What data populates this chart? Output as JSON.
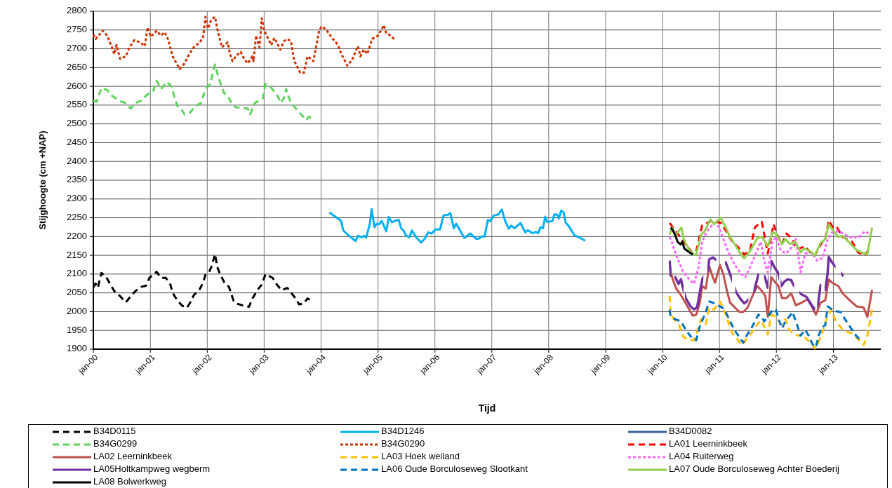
{
  "chart_data": {
    "type": "line",
    "xlabel": "Tijd",
    "ylabel": "Stijghoogte (cm +NAP)",
    "xlim": [
      "2000-01-01",
      "2013-11-01"
    ],
    "xticks": [
      {
        "value": "2000-01-01",
        "label": "jan-00"
      },
      {
        "value": "2001-01-01",
        "label": "jan-01"
      },
      {
        "value": "2002-01-01",
        "label": "jan-02"
      },
      {
        "value": "2003-01-01",
        "label": "jan-03"
      },
      {
        "value": "2004-01-01",
        "label": "jan-04"
      },
      {
        "value": "2005-01-01",
        "label": "jan-05"
      },
      {
        "value": "2006-01-01",
        "label": "jan-06"
      },
      {
        "value": "2007-01-01",
        "label": "jan-07"
      },
      {
        "value": "2008-01-01",
        "label": "jan-08"
      },
      {
        "value": "2009-01-01",
        "label": "jan-09"
      },
      {
        "value": "2010-01-01",
        "label": "jan-10"
      },
      {
        "value": "2011-01-01",
        "label": "jan-11"
      },
      {
        "value": "2012-01-01",
        "label": "jan-12"
      },
      {
        "value": "2013-01-01",
        "label": "jan-13"
      }
    ],
    "ylim": [
      1900,
      2800
    ],
    "yticks": [
      1900,
      1950,
      2000,
      2050,
      2100,
      2150,
      2200,
      2250,
      2300,
      2350,
      2400,
      2450,
      2500,
      2550,
      2600,
      2650,
      2700,
      2750,
      2800
    ],
    "grid": true,
    "legend": "bottom",
    "series": [
      {
        "name": "B34D0115",
        "color": "#000000",
        "line_style": "dashed",
        "x": [
          "2000-01-01",
          "2000-01-15",
          "2000-01-30",
          "2000-02-07",
          "2000-02-22",
          "2000-03-22",
          "2000-04-21",
          "2000-05-14",
          "2000-06-21",
          "2000-07-28",
          "2000-08-28",
          "2000-09-28",
          "2000-11-04",
          "2000-12-04",
          "2000-12-26",
          "2001-02-10",
          "2001-03-10",
          "2001-04-10",
          "2001-05-10",
          "2001-05-24",
          "2001-06-24",
          "2001-07-24",
          "2001-08-23",
          "2001-09-15",
          "2001-10-07",
          "2001-11-14",
          "2001-12-06",
          "2001-12-21",
          "2002-01-14",
          "2002-01-29",
          "2002-02-20",
          "2002-03-06",
          "2002-03-21",
          "2002-04-20",
          "2002-05-20",
          "2002-06-19",
          "2002-07-04",
          "2002-08-19",
          "2002-09-26",
          "2002-10-18",
          "2002-11-18",
          "2002-12-17",
          "2003-01-10",
          "2003-02-24",
          "2003-03-24",
          "2003-04-23",
          "2003-05-30",
          "2003-06-30",
          "2003-07-22",
          "2003-08-14",
          "2003-09-13",
          "2003-10-06",
          "2003-10-21"
        ],
        "values": [
          2065,
          2075,
          2063,
          2078,
          2103,
          2093,
          2071,
          2055,
          2041,
          2025,
          2041,
          2055,
          2066,
          2069,
          2090,
          2106,
          2090,
          2090,
          2071,
          2050,
          2029,
          2016,
          2010,
          2025,
          2044,
          2060,
          2078,
          2099,
          2106,
          2121,
          2153,
          2119,
          2103,
          2078,
          2066,
          2029,
          2022,
          2016,
          2013,
          2035,
          2057,
          2072,
          2100,
          2090,
          2072,
          2057,
          2063,
          2047,
          2035,
          2019,
          2022,
          2035,
          2032
        ]
      },
      {
        "name": "B34D1246",
        "color": "#00b0f0",
        "line_style": "solid",
        "x": [
          "2004-02-24",
          "2004-04-11",
          "2004-05-08",
          "2004-05-23",
          "2004-06-26",
          "2004-08-10",
          "2004-08-25",
          "2004-09-17",
          "2004-10-02",
          "2004-10-17",
          "2004-11-09",
          "2004-11-21",
          "2004-12-09",
          "2004-12-24",
          "2005-01-09",
          "2005-01-24",
          "2005-02-23",
          "2005-03-11",
          "2005-03-30",
          "2005-04-22",
          "2005-05-14",
          "2005-05-29",
          "2005-06-14",
          "2005-06-29",
          "2005-07-21",
          "2005-08-06",
          "2005-09-05",
          "2005-10-05",
          "2005-10-27",
          "2005-11-19",
          "2005-12-11",
          "2006-01-04",
          "2006-02-03",
          "2006-02-25",
          "2006-03-25",
          "2006-04-10",
          "2006-05-02",
          "2006-05-17",
          "2006-07-09",
          "2006-08-16",
          "2006-09-23",
          "2006-10-08",
          "2006-10-30",
          "2006-11-15",
          "2006-12-07",
          "2006-12-22",
          "2007-01-14",
          "2007-02-13",
          "2007-03-06",
          "2007-03-28",
          "2007-04-20",
          "2007-05-05",
          "2007-05-27",
          "2007-07-04",
          "2007-08-04",
          "2007-08-19",
          "2007-09-18",
          "2007-10-11",
          "2007-10-26",
          "2007-11-10",
          "2007-11-25",
          "2007-12-10",
          "2007-12-22",
          "2008-01-25",
          "2008-02-06",
          "2008-02-24",
          "2008-03-06",
          "2008-03-21",
          "2008-04-06",
          "2008-04-20",
          "2008-05-08",
          "2008-06-15",
          "2008-07-22",
          "2008-08-22"
        ],
        "values": [
          2264,
          2250,
          2242,
          2216,
          2203,
          2188,
          2202,
          2198,
          2202,
          2197,
          2234,
          2273,
          2225,
          2234,
          2233,
          2242,
          2214,
          2252,
          2238,
          2242,
          2244,
          2222,
          2216,
          2203,
          2198,
          2216,
          2197,
          2184,
          2194,
          2211,
          2208,
          2219,
          2219,
          2256,
          2258,
          2262,
          2222,
          2234,
          2196,
          2208,
          2194,
          2194,
          2200,
          2200,
          2244,
          2241,
          2256,
          2259,
          2272,
          2241,
          2221,
          2229,
          2222,
          2236,
          2211,
          2217,
          2209,
          2212,
          2209,
          2225,
          2222,
          2253,
          2239,
          2241,
          2259,
          2258,
          2248,
          2269,
          2264,
          2236,
          2228,
          2203,
          2196,
          2189
        ]
      },
      {
        "name": "B34D0082",
        "color": "#366092",
        "line_style": "solid"
      },
      {
        "name": "B34G0299",
        "color": "#5ed35e",
        "line_style": "dashed",
        "x": [
          "2000-01-01",
          "2000-01-23",
          "2000-02-22",
          "2000-03-30",
          "2000-04-29",
          "2000-06-14",
          "2000-07-21",
          "2000-08-28",
          "2000-09-28",
          "2000-11-04",
          "2000-12-12",
          "2001-01-19",
          "2001-02-10",
          "2001-03-10",
          "2001-04-17",
          "2001-05-17",
          "2001-06-02",
          "2001-06-24",
          "2001-07-16",
          "2001-08-08",
          "2001-09-15",
          "2001-10-15",
          "2001-11-22",
          "2001-12-21",
          "2002-01-21",
          "2002-02-13",
          "2002-02-20",
          "2002-03-06",
          "2002-03-28",
          "2002-04-20",
          "2002-05-12",
          "2002-06-12",
          "2002-07-04",
          "2002-09-18",
          "2002-10-03",
          "2002-11-03",
          "2002-12-02",
          "2002-12-24",
          "2003-01-10",
          "2003-02-16",
          "2003-04-01",
          "2003-04-15",
          "2003-05-08",
          "2003-05-23",
          "2003-05-30",
          "2003-06-22",
          "2003-08-07",
          "2003-09-29",
          "2003-10-14",
          "2003-10-29"
        ],
        "values": [
          2562,
          2559,
          2596,
          2590,
          2575,
          2562,
          2556,
          2541,
          2556,
          2562,
          2578,
          2587,
          2615,
          2593,
          2612,
          2599,
          2575,
          2547,
          2541,
          2525,
          2531,
          2547,
          2556,
          2593,
          2606,
          2649,
          2658,
          2636,
          2606,
          2581,
          2575,
          2550,
          2544,
          2541,
          2525,
          2556,
          2562,
          2568,
          2606,
          2596,
          2572,
          2556,
          2568,
          2593,
          2581,
          2556,
          2534,
          2510,
          2519,
          2516
        ]
      },
      {
        "name": "B34G0290",
        "color": "#cc3300",
        "line_style": "dotted",
        "x": [
          "2000-01-01",
          "2000-01-16",
          "2000-03-01",
          "2000-03-30",
          "2000-04-29",
          "2000-05-14",
          "2000-05-29",
          "2000-06-21",
          "2000-07-28",
          "2000-08-20",
          "2000-09-20",
          "2000-10-27",
          "2000-11-26",
          "2000-12-14",
          "2001-01-04",
          "2001-02-10",
          "2001-03-10",
          "2001-04-02",
          "2001-04-24",
          "2001-05-24",
          "2001-07-08",
          "2001-08-08",
          "2001-09-08",
          "2001-10-07",
          "2001-11-14",
          "2001-12-06",
          "2001-12-21",
          "2002-01-06",
          "2002-01-21",
          "2002-02-06",
          "2002-02-20",
          "2002-03-06",
          "2002-04-05",
          "2002-05-12",
          "2002-05-27",
          "2002-06-12",
          "2002-07-04",
          "2002-08-03",
          "2002-08-26",
          "2002-09-18",
          "2002-10-18",
          "2002-10-25",
          "2002-11-10",
          "2002-12-02",
          "2002-12-17",
          "2003-01-02",
          "2003-01-24",
          "2003-02-16",
          "2003-03-08",
          "2003-04-15",
          "2003-05-08",
          "2003-05-30",
          "2003-06-22",
          "2003-07-14",
          "2003-08-21",
          "2003-09-13",
          "2003-10-06",
          "2003-11-13",
          "2003-12-20",
          "2004-01-05",
          "2004-02-04",
          "2004-03-11",
          "2004-04-19",
          "2004-05-11",
          "2004-06-18",
          "2004-07-18",
          "2004-08-25",
          "2004-09-10",
          "2004-10-02",
          "2004-10-24",
          "2004-11-24",
          "2005-01-01",
          "2005-02-08",
          "2005-02-22",
          "2005-03-22",
          "2005-04-14"
        ],
        "values": [
          2738,
          2726,
          2748,
          2735,
          2704,
          2686,
          2710,
          2673,
          2680,
          2704,
          2723,
          2717,
          2707,
          2757,
          2732,
          2748,
          2735,
          2744,
          2726,
          2680,
          2646,
          2661,
          2686,
          2704,
          2717,
          2732,
          2785,
          2754,
          2772,
          2781,
          2785,
          2754,
          2704,
          2717,
          2686,
          2667,
          2680,
          2692,
          2673,
          2661,
          2680,
          2667,
          2735,
          2704,
          2781,
          2748,
          2729,
          2710,
          2729,
          2698,
          2720,
          2726,
          2720,
          2667,
          2636,
          2636,
          2680,
          2667,
          2748,
          2760,
          2751,
          2729,
          2710,
          2686,
          2655,
          2670,
          2707,
          2680,
          2698,
          2686,
          2726,
          2735,
          2763,
          2742,
          2735,
          2726
        ]
      },
      {
        "name": "LA01 Leerninkbeek",
        "color": "#ff0000",
        "line_style": "dashed",
        "x": [
          "2010-02-15",
          "2010-07-13",
          "2010-08-05",
          "2010-09-12",
          "2010-10-12",
          "2010-11-19",
          "2010-12-12",
          "2011-01-11",
          "2011-02-18",
          "2011-03-25",
          "2011-05-02",
          "2011-06-09",
          "2011-07-16",
          "2011-08-16",
          "2011-09-15",
          "2011-09-30",
          "2011-11-07",
          "2011-11-29",
          "2011-12-14",
          "2012-01-06",
          "2012-02-06",
          "2012-03-06",
          "2012-04-13",
          "2012-05-05",
          "2012-05-27",
          "2012-07-04",
          "2012-08-04",
          "2012-09-04",
          "2012-10-18",
          "2012-11-10",
          "2012-12-02",
          "2013-01-02",
          "2013-01-24",
          "2013-03-01",
          "2013-05-01",
          "2013-06-08",
          "2013-07-22",
          "2013-08-14"
        ],
        "values": [
          2236,
          2155,
          2161,
          2230,
          2236,
          2243,
          2239,
          2236,
          2211,
          2186,
          2171,
          2152,
          2164,
          2224,
          2236,
          2239,
          2155,
          2199,
          2233,
          2205,
          2180,
          2208,
          2193,
          2168,
          2168,
          2174,
          2158,
          2149,
          2183,
          2193,
          2243,
          2221,
          2224,
          2199,
          2186,
          2158,
          2149,
          2164
        ]
      },
      {
        "name": "LA02 Leerninkbeek",
        "color": "#c0504d",
        "line_style": "solid",
        "x": [
          "2010-02-15",
          "2010-02-22",
          "2010-03-07",
          "2010-03-30",
          "2010-04-21",
          "2010-05-14",
          "2010-06-14",
          "2010-07-13",
          "2010-08-05",
          "2010-08-28",
          "2010-09-12",
          "2010-10-05",
          "2010-10-27",
          "2010-11-19",
          "2010-12-04",
          "2011-01-04",
          "2011-01-26",
          "2011-02-18",
          "2011-03-10",
          "2011-04-10",
          "2011-05-10",
          "2011-06-02",
          "2011-07-01",
          "2011-08-08",
          "2011-09-01",
          "2011-09-30",
          "2011-10-22",
          "2011-11-07",
          "2011-11-29",
          "2011-12-21",
          "2012-01-14",
          "2012-02-06",
          "2012-03-06",
          "2012-04-05",
          "2012-05-05",
          "2012-06-12",
          "2012-07-19",
          "2012-08-19",
          "2012-09-11",
          "2012-10-11",
          "2012-11-10",
          "2012-12-02",
          "2012-12-24",
          "2013-02-02",
          "2013-03-01",
          "2013-04-16",
          "2013-05-30",
          "2013-07-14",
          "2013-08-07",
          "2013-09-06"
        ],
        "values": [
          2133,
          2105,
          2086,
          2061,
          2049,
          2033,
          2011,
          1989,
          1992,
          2024,
          2068,
          2061,
          2121,
          2092,
          2077,
          2124,
          2099,
          2055,
          2024,
          2011,
          1999,
          1999,
          2011,
          2049,
          2068,
          2055,
          2042,
          1986,
          2092,
          2080,
          2068,
          2036,
          2036,
          2049,
          2017,
          2024,
          2033,
          2011,
          1992,
          2024,
          2030,
          2086,
          2077,
          2068,
          2049,
          2030,
          2014,
          2011,
          1986,
          2058
        ]
      },
      {
        "name": "LA03 Hoek weiland",
        "color": "#ffc000",
        "line_style": "dashed",
        "x": [
          "2010-02-15",
          "2010-02-22",
          "2010-03-15",
          "2010-04-14",
          "2010-05-14",
          "2010-06-21",
          "2010-07-21",
          "2010-08-13",
          "2010-09-05",
          "2010-10-05",
          "2010-10-27",
          "2010-11-26",
          "2011-01-04",
          "2011-02-03",
          "2011-02-25",
          "2011-03-25",
          "2011-04-24",
          "2011-05-24",
          "2011-06-24",
          "2011-07-24",
          "2011-08-23",
          "2011-09-23",
          "2011-10-15",
          "2011-11-07",
          "2011-11-29",
          "2011-12-29",
          "2012-01-29",
          "2012-02-28",
          "2012-03-21",
          "2012-04-13",
          "2012-05-20",
          "2012-06-19",
          "2012-07-19",
          "2012-08-19",
          "2012-09-04",
          "2012-09-26",
          "2012-10-25",
          "2012-11-18",
          "2012-12-17",
          "2013-01-17",
          "2013-02-24",
          "2013-04-01",
          "2013-05-01",
          "2013-06-08",
          "2013-07-14",
          "2013-08-07",
          "2013-09-06"
        ],
        "values": [
          2042,
          1992,
          1980,
          1967,
          1933,
          1924,
          1924,
          1949,
          1980,
          1967,
          2011,
          2005,
          2027,
          1999,
          1974,
          1942,
          1927,
          1911,
          1927,
          1942,
          1961,
          1977,
          1961,
          1939,
          1992,
          1986,
          1967,
          1980,
          1955,
          1942,
          1936,
          1939,
          1924,
          1914,
          1902,
          1917,
          1949,
          1980,
          2005,
          1974,
          1955,
          1946,
          1942,
          1927,
          1911,
          1936,
          2005
        ]
      },
      {
        "name": "LA04 Ruiterweg",
        "color": "#ff66ff",
        "line_style": "dotted",
        "x": [
          "2010-02-15",
          "2010-03-01",
          "2010-03-30",
          "2010-05-14",
          "2010-06-21",
          "2010-07-21",
          "2010-08-20",
          "2010-09-12",
          "2010-10-12",
          "2010-11-26",
          "2010-12-26",
          "2011-01-26",
          "2011-03-03",
          "2011-04-10",
          "2011-05-17",
          "2011-06-16",
          "2011-07-16",
          "2011-08-23",
          "2011-09-23",
          "2011-10-15",
          "2011-11-07",
          "2011-12-07",
          "2011-12-29",
          "2012-01-29",
          "2012-02-28",
          "2012-03-28",
          "2012-05-05",
          "2012-06-05",
          "2012-07-04",
          "2012-08-12",
          "2012-09-18",
          "2012-10-25",
          "2012-11-25",
          "2012-12-24",
          "2013-02-02",
          "2013-03-16",
          "2013-05-01",
          "2013-06-15",
          "2013-07-22",
          "2013-08-14"
        ],
        "values": [
          2199,
          2186,
          2149,
          2105,
          2086,
          2074,
          2118,
          2186,
          2214,
          2236,
          2227,
          2193,
          2155,
          2124,
          2102,
          2092,
          2118,
          2155,
          2186,
          2136,
          2105,
          2186,
          2199,
          2164,
          2155,
          2164,
          2193,
          2105,
          2155,
          2158,
          2136,
          2143,
          2193,
          2211,
          2214,
          2205,
          2196,
          2199,
          2214,
          2208
        ]
      },
      {
        "name": "LA05Holtkampweg wegberm",
        "color": "#7030a0",
        "line_style": "solid",
        "x": [
          "2010-02-15",
          "2010-02-22",
          null,
          "2010-03-22",
          "2010-04-14",
          "2010-04-29",
          "2010-05-11",
          null,
          "2010-05-29",
          "2010-06-29",
          "2010-07-21",
          "2010-08-10",
          "2010-09-01",
          "2010-09-15",
          null,
          "2010-10-20",
          "2010-10-27",
          "2010-11-19",
          "2010-12-07",
          null,
          "2011-02-10",
          "2011-03-18",
          null,
          "2011-04-17",
          "2011-05-17",
          "2011-06-09",
          "2011-07-01",
          null,
          "2011-08-11",
          "2011-09-08",
          null,
          "2011-10-18",
          "2011-11-07",
          null,
          "2011-11-29",
          "2011-12-21",
          "2012-01-14",
          null,
          "2012-02-02",
          "2012-02-21",
          "2012-03-13",
          "2012-04-05",
          "2012-04-20",
          null,
          "2012-06-02",
          "2012-07-12",
          "2012-08-12",
          "2012-09-01",
          null,
          "2012-09-23",
          "2012-10-11",
          null,
          "2012-11-10",
          "2012-11-25",
          null,
          "2012-12-02",
          "2012-12-20",
          "2013-01-10",
          null,
          "2013-02-24",
          "2013-03-05"
        ],
        "values": [
          2136,
          2096,
          null,
          2092,
          2074,
          2086,
          2064,
          null,
          2036,
          2014,
          2006,
          2011,
          2061,
          2089,
          null,
          2111,
          2139,
          2144,
          2139,
          null,
          2131,
          2091,
          null,
          2052,
          2033,
          2022,
          2029,
          null,
          2055,
          2099,
          null,
          2094,
          2064,
          null,
          2135,
          2117,
          2102,
          null,
          2068,
          2080,
          2086,
          2084,
          2071,
          null,
          2048,
          2039,
          2019,
          2006,
          null,
          2017,
          2071,
          null,
          2058,
          2102,
          null,
          2146,
          2133,
          2122,
          null,
          2100,
          2094
        ]
      },
      {
        "name": "LA06 Oude Borculoseweg Slootkant",
        "color": "#0070c0",
        "line_style": "dashed",
        "x": [
          "2010-02-15",
          "2010-02-22",
          "2010-03-22",
          "2010-04-29",
          "2010-05-29",
          "2010-07-13",
          "2010-08-05",
          "2010-08-28",
          "2010-10-05",
          "2010-10-27",
          "2010-11-19",
          "2010-12-19",
          "2011-01-19",
          "2011-02-10",
          "2011-03-03",
          "2011-04-10",
          "2011-05-02",
          "2011-06-02",
          "2011-06-24",
          "2011-07-24",
          "2011-08-23",
          "2011-09-08",
          "2011-09-23",
          "2011-10-15",
          "2011-11-07",
          "2011-12-07",
          "2011-12-29",
          "2012-01-21",
          "2012-02-06",
          "2012-02-28",
          "2012-03-28",
          "2012-04-13",
          "2012-05-05",
          "2012-06-05",
          "2012-07-04",
          "2012-07-26",
          "2012-08-19",
          "2012-09-11",
          "2012-09-26",
          "2012-10-18",
          "2012-11-10",
          "2012-11-25",
          "2012-12-17",
          "2013-01-10",
          "2013-02-16",
          "2013-03-16",
          "2013-04-16",
          "2013-05-15",
          "2013-06-15"
        ],
        "values": [
          2005,
          1986,
          1980,
          1974,
          1952,
          1927,
          1924,
          1961,
          1999,
          2027,
          2024,
          2017,
          2011,
          1999,
          1980,
          1949,
          1936,
          1917,
          1936,
          1955,
          1980,
          1992,
          1989,
          1974,
          1986,
          2005,
          2005,
          1974,
          1955,
          1974,
          1989,
          1999,
          1974,
          1936,
          1952,
          1936,
          1914,
          1905,
          1933,
          1958,
          1964,
          2014,
          2008,
          2002,
          1999,
          1980,
          1961,
          1942,
          1927
        ]
      },
      {
        "name": "LA07 Oude Borculoseweg Achter Boederij",
        "color": "#92d050",
        "line_style": "solid",
        "x": [
          "2010-02-15",
          "2010-03-03",
          "2010-03-22",
          "2010-04-14",
          "2010-05-02",
          "2010-05-17",
          "2010-06-21",
          "2010-07-21",
          "2010-08-05",
          "2010-09-05",
          "2010-09-28",
          "2010-11-04",
          "2010-11-26",
          "2011-01-09",
          "2011-02-10",
          "2011-03-10",
          "2011-04-17",
          "2011-05-24",
          "2011-06-09",
          "2011-07-16",
          "2011-09-01",
          "2011-09-30",
          "2011-11-07",
          "2011-12-07",
          "2011-12-29",
          "2012-02-06",
          "2012-02-28",
          "2012-03-28",
          "2012-04-28",
          "2012-06-05",
          "2012-06-27",
          "2012-08-04",
          "2012-09-04",
          "2012-10-11",
          "2012-11-10",
          "2012-12-02",
          "2013-01-02",
          "2013-02-02",
          "2013-03-01",
          "2013-04-16",
          "2013-05-30",
          "2013-06-30",
          "2013-08-07",
          "2013-09-06"
        ],
        "values": [
          2205,
          2224,
          2202,
          2214,
          2224,
          2193,
          2164,
          2152,
          2152,
          2205,
          2214,
          2246,
          2233,
          2250,
          2224,
          2199,
          2174,
          2149,
          2142,
          2161,
          2196,
          2199,
          2174,
          2211,
          2208,
          2180,
          2193,
          2180,
          2186,
          2158,
          2168,
          2161,
          2149,
          2183,
          2193,
          2233,
          2214,
          2199,
          2202,
          2183,
          2164,
          2158,
          2152,
          2224
        ]
      },
      {
        "name": "LA08 Bolwerkweg",
        "color": "#000000",
        "line_style": "solid",
        "x": [
          "2010-02-22",
          "2010-03-07",
          "2010-03-22",
          "2010-04-07",
          "2010-04-26",
          "2010-05-07",
          "2010-05-21",
          "2010-06-21",
          "2010-07-13"
        ],
        "values": [
          2224,
          2217,
          2205,
          2186,
          2179,
          2186,
          2168,
          2158,
          2152
        ]
      }
    ]
  }
}
